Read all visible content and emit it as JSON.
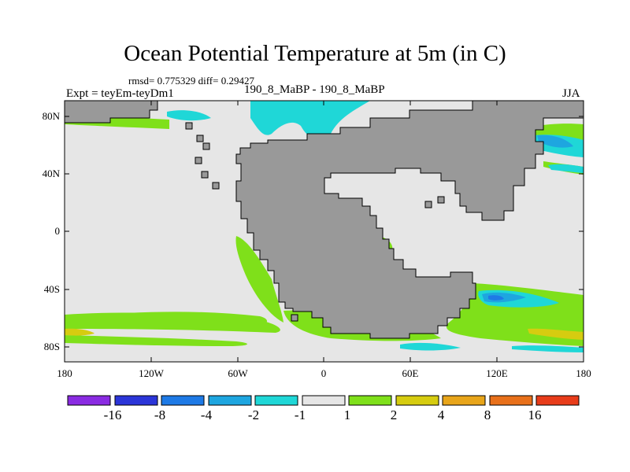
{
  "figure": {
    "title": "Ocean Potential Temperature at 5m (in C)",
    "stats": "rmsd= 0.775329 diff= 0.29427",
    "experiment": "Expt = teyEm-teyDm1",
    "runs": "190_8_MaBP - 190_8_MaBP",
    "season": "JJA"
  },
  "axes": {
    "x_ticks": [
      "180",
      "120W",
      "60W",
      "0",
      "60E",
      "120E",
      "180"
    ],
    "y_ticks": [
      "80N",
      "40N",
      "0",
      "40S",
      "80S"
    ]
  },
  "colorbar": {
    "labels": [
      "-16",
      "-8",
      "-4",
      "-2",
      "-1",
      "1",
      "2",
      "4",
      "8",
      "16"
    ],
    "colors": [
      "#8a2be2",
      "#2b35d8",
      "#1e7ae6",
      "#1ea6e0",
      "#1fd7d7",
      "#e6e6e6",
      "#7fe01a",
      "#d6cc10",
      "#e8a51a",
      "#e8701a",
      "#e83c1a"
    ]
  },
  "map_colors": {
    "land": "#999999",
    "neutral": "#e6e6e6",
    "warm": "#7fe01a",
    "warmer": "#d6cc10",
    "cool": "#1fd7d7",
    "cooler": "#1ea6e0",
    "coldest": "#1e7ae6"
  }
}
